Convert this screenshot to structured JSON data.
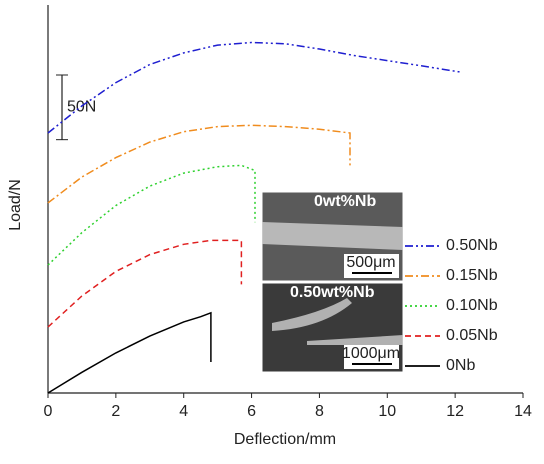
{
  "chart_data": {
    "type": "line",
    "x_label": "Deflection/mm",
    "y_label": "Load/N",
    "xlim": [
      0,
      14
    ],
    "xticks": [
      0,
      2,
      4,
      6,
      8,
      10,
      12,
      14
    ],
    "ylim": [
      0,
      300
    ],
    "scale_bar": {
      "label": "50N",
      "value": 50
    },
    "series": [
      {
        "name": "0.50Nb",
        "color": "#1f1fd0",
        "dash": "8 3 2 3 2 3",
        "x": [
          0,
          1,
          2,
          3,
          4,
          5,
          6,
          7,
          8,
          9,
          10,
          11,
          12.2
        ],
        "values": [
          201,
          222,
          240,
          254,
          263,
          269,
          271,
          270,
          266,
          261,
          257,
          253,
          248
        ]
      },
      {
        "name": "0.15Nb",
        "color": "#f08c1e",
        "dash": "8 3 2 3",
        "x": [
          0,
          1,
          2,
          3,
          4,
          5,
          6,
          7,
          8,
          8.9,
          8.9
        ],
        "values": [
          147,
          167,
          182,
          194,
          202,
          206,
          207,
          206,
          204,
          201,
          176
        ]
      },
      {
        "name": "0.10Nb",
        "color": "#2ed12e",
        "dash": "2 3",
        "x": [
          0,
          1,
          2,
          3,
          4,
          5,
          5.7,
          6.1,
          6.1
        ],
        "values": [
          99,
          124,
          145,
          160,
          170,
          175,
          176,
          172,
          132
        ]
      },
      {
        "name": "0.05Nb",
        "color": "#e02020",
        "dash": "6 4",
        "x": [
          0,
          1,
          2,
          3,
          4,
          4.8,
          5.7,
          5.7
        ],
        "values": [
          51,
          75,
          94,
          107,
          115,
          118,
          118,
          84
        ]
      },
      {
        "name": "0Nb",
        "color": "#000000",
        "dash": "none",
        "x": [
          0,
          1,
          2,
          3,
          4,
          4.5,
          4.8,
          4.8
        ],
        "values": [
          0,
          16,
          31,
          44,
          55,
          59,
          62,
          24
        ]
      }
    ],
    "inset": [
      {
        "label": "0wt%Nb",
        "scale": "500μm"
      },
      {
        "label": "0.50wt%Nb",
        "scale": "1000μm"
      }
    ]
  }
}
